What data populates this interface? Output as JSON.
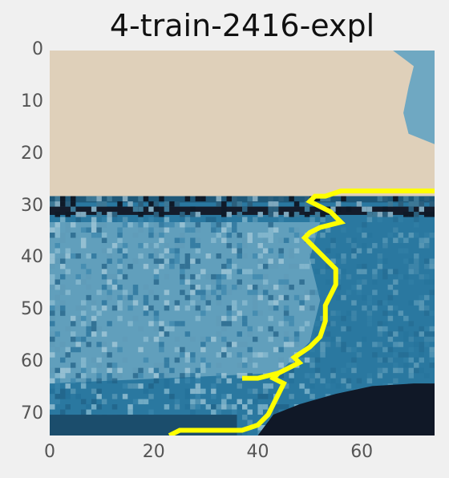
{
  "figure": {
    "title": "4-train-2416-expl"
  },
  "colors": {
    "background": "#f0f0f0",
    "sky": "#dfd0ba",
    "sky_corner": "#6fa8c2",
    "horizon_dark": "#141c2b",
    "sea_mid": "#2a78a0",
    "sea_light": "#74acc6",
    "sea_dark": "#1d6a91",
    "shadow": "#101827",
    "highlight": "#ffff00"
  },
  "chart_data": {
    "type": "heatmap",
    "title": "4-train-2416-expl",
    "xlabel": "",
    "ylabel": "",
    "xlim": [
      0,
      74
    ],
    "ylim": [
      74,
      0
    ],
    "xticks": [
      0,
      20,
      40,
      60
    ],
    "yticks": [
      0,
      10,
      20,
      30,
      40,
      50,
      60,
      70
    ],
    "xtick_labels": [
      "0",
      "20",
      "40",
      "60"
    ],
    "ytick_labels": [
      "0",
      "10",
      "20",
      "30",
      "40",
      "50",
      "60",
      "70"
    ],
    "grid": false,
    "image_size": [
      74,
      74
    ],
    "regions": {
      "sky_rows": [
        0,
        27
      ],
      "horizon_rows": [
        28,
        31
      ],
      "sea_rows": [
        32,
        74
      ],
      "shadow_start_row": 64
    },
    "highlight_boundary": [
      [
        74,
        27
      ],
      [
        70,
        27
      ],
      [
        62,
        27
      ],
      [
        56,
        27
      ],
      [
        53,
        28
      ],
      [
        51,
        28
      ],
      [
        50,
        29
      ],
      [
        52,
        30
      ],
      [
        54,
        31
      ],
      [
        55,
        32
      ],
      [
        56,
        33
      ],
      [
        52,
        34
      ],
      [
        50,
        35
      ],
      [
        49,
        36
      ],
      [
        51,
        38
      ],
      [
        53,
        40
      ],
      [
        55,
        42
      ],
      [
        55,
        45
      ],
      [
        54,
        47
      ],
      [
        53,
        49
      ],
      [
        53,
        52
      ],
      [
        52,
        55
      ],
      [
        50,
        57
      ],
      [
        47,
        59
      ],
      [
        48,
        60
      ],
      [
        46,
        61
      ],
      [
        44,
        62
      ],
      [
        43,
        63
      ],
      [
        45,
        64
      ],
      [
        44,
        66
      ],
      [
        43,
        68
      ],
      [
        42,
        70
      ],
      [
        40,
        72
      ],
      [
        37,
        73
      ],
      [
        33,
        73
      ],
      [
        28,
        73
      ],
      [
        25,
        73
      ],
      [
        23,
        74
      ]
    ],
    "highlight_branch": [
      [
        44,
        62
      ],
      [
        40,
        63
      ],
      [
        37,
        63
      ]
    ]
  }
}
